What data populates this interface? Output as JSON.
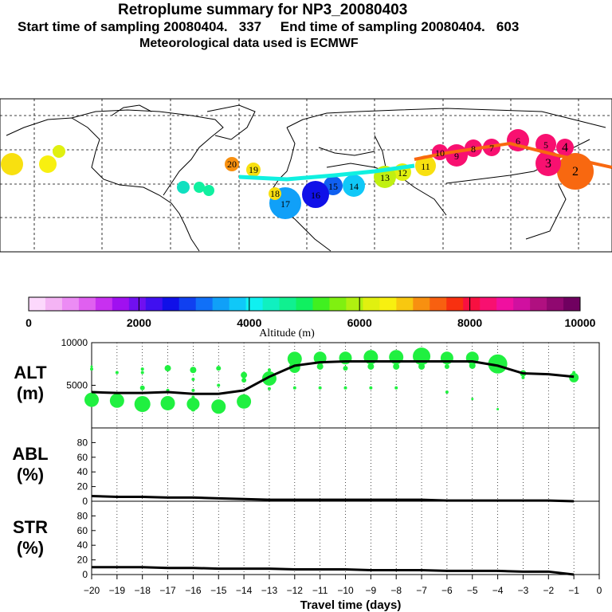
{
  "header": {
    "title": "Retroplume summary for NP3_20080403",
    "line2": "Start time of sampling 20080404.   337     End time of sampling 20080404.   603",
    "line3": "Meteorological data used is ECMWF"
  },
  "colorbar": {
    "ticks": [
      "0",
      "2000",
      "4000",
      "6000",
      "8000",
      "10000"
    ],
    "label": "Altitude (m)",
    "colors": [
      "#fcd8fc",
      "#f4b4f4",
      "#ec8cf4",
      "#e060f0",
      "#c830f0",
      "#a010f0",
      "#7010f0",
      "#4010f0",
      "#1010e8",
      "#1040f0",
      "#1070f8",
      "#10a0f8",
      "#10c8f8",
      "#10f0f0",
      "#10f0c0",
      "#10f090",
      "#10f060",
      "#40f020",
      "#80f010",
      "#b0f010",
      "#e0f010",
      "#f8f010",
      "#f8c810",
      "#f89010",
      "#f86010",
      "#f83010",
      "#f81040",
      "#f81070",
      "#f010a0",
      "#d010a0",
      "#b01080",
      "#900870",
      "#700060"
    ]
  },
  "map": {
    "plume_labels": [
      "2",
      "3",
      "4",
      "5",
      "6",
      "7",
      "8",
      "9",
      "10",
      "11",
      "12",
      "13",
      "14",
      "15",
      "16",
      "17",
      "18",
      "19",
      "20"
    ],
    "colors": {
      "ocean": "#ffffff",
      "coast": "#000000"
    }
  },
  "chart_data": [
    {
      "type": "scatter",
      "name": "ALT",
      "ylabel": "ALT\n(m)",
      "ylabel_lines": [
        "ALT",
        "(m)"
      ],
      "ylim": [
        0,
        10000
      ],
      "yticks": [
        "10000",
        "5000"
      ],
      "xlim": [
        -20,
        0
      ],
      "mean_line": {
        "x": [
          -20,
          -19,
          -18,
          -17,
          -16,
          -15,
          -14,
          -13,
          -12,
          -11,
          -10,
          -9,
          -8,
          -7,
          -6,
          -5,
          -4,
          -3,
          -2,
          -1
        ],
        "y": [
          4200,
          4100,
          4100,
          4200,
          4000,
          4000,
          4400,
          6000,
          7300,
          7700,
          7800,
          7800,
          7800,
          7800,
          7800,
          7800,
          7300,
          6400,
          6300,
          6000
        ]
      },
      "points": [
        {
          "x": -20,
          "y": 3300,
          "s": 9
        },
        {
          "x": -20,
          "y": 6900,
          "s": 2
        },
        {
          "x": -20,
          "y": 7200,
          "s": 1.5
        },
        {
          "x": -19,
          "y": 3200,
          "s": 9
        },
        {
          "x": -19,
          "y": 6500,
          "s": 2
        },
        {
          "x": -18,
          "y": 2800,
          "s": 10
        },
        {
          "x": -18,
          "y": 4700,
          "s": 3
        },
        {
          "x": -18,
          "y": 6500,
          "s": 2
        },
        {
          "x": -18,
          "y": 6900,
          "s": 2
        },
        {
          "x": -17,
          "y": 2900,
          "s": 9
        },
        {
          "x": -17,
          "y": 7000,
          "s": 4
        },
        {
          "x": -17,
          "y": 4400,
          "s": 2
        },
        {
          "x": -16,
          "y": 2800,
          "s": 8
        },
        {
          "x": -16,
          "y": 2200,
          "s": 3
        },
        {
          "x": -16,
          "y": 4400,
          "s": 2
        },
        {
          "x": -16,
          "y": 6800,
          "s": 4
        },
        {
          "x": -16,
          "y": 5700,
          "s": 2
        },
        {
          "x": -16,
          "y": 3600,
          "s": 2
        },
        {
          "x": -15,
          "y": 2500,
          "s": 9
        },
        {
          "x": -15,
          "y": 7000,
          "s": 3
        },
        {
          "x": -15,
          "y": 5000,
          "s": 2
        },
        {
          "x": -14,
          "y": 3100,
          "s": 9
        },
        {
          "x": -14,
          "y": 6200,
          "s": 4
        },
        {
          "x": -14,
          "y": 5600,
          "s": 3
        },
        {
          "x": -13,
          "y": 5800,
          "s": 9
        },
        {
          "x": -13,
          "y": 4600,
          "s": 2
        },
        {
          "x": -13,
          "y": 6800,
          "s": 2
        },
        {
          "x": -12,
          "y": 8100,
          "s": 9
        },
        {
          "x": -12,
          "y": 7100,
          "s": 7
        },
        {
          "x": -12,
          "y": 4700,
          "s": 2
        },
        {
          "x": -11,
          "y": 8200,
          "s": 8
        },
        {
          "x": -11,
          "y": 7200,
          "s": 4
        },
        {
          "x": -11,
          "y": 4700,
          "s": 2
        },
        {
          "x": -10,
          "y": 8200,
          "s": 8
        },
        {
          "x": -10,
          "y": 7000,
          "s": 3
        },
        {
          "x": -10,
          "y": 4700,
          "s": 2
        },
        {
          "x": -9,
          "y": 8300,
          "s": 9
        },
        {
          "x": -9,
          "y": 7200,
          "s": 4
        },
        {
          "x": -9,
          "y": 4700,
          "s": 2
        },
        {
          "x": -8,
          "y": 8300,
          "s": 9
        },
        {
          "x": -8,
          "y": 7200,
          "s": 4
        },
        {
          "x": -8,
          "y": 4700,
          "s": 2
        },
        {
          "x": -7,
          "y": 8400,
          "s": 11
        },
        {
          "x": -7,
          "y": 7200,
          "s": 4
        },
        {
          "x": -6,
          "y": 8200,
          "s": 8
        },
        {
          "x": -6,
          "y": 7200,
          "s": 3
        },
        {
          "x": -6,
          "y": 4200,
          "s": 2
        },
        {
          "x": -5,
          "y": 8200,
          "s": 8
        },
        {
          "x": -5,
          "y": 7300,
          "s": 4
        },
        {
          "x": -5,
          "y": 3400,
          "s": 1.5
        },
        {
          "x": -4,
          "y": 7500,
          "s": 12
        },
        {
          "x": -4,
          "y": 2200,
          "s": 1.5
        },
        {
          "x": -3,
          "y": 6400,
          "s": 4
        },
        {
          "x": -3,
          "y": 5900,
          "s": 2
        },
        {
          "x": -1,
          "y": 5900,
          "s": 6
        },
        {
          "x": -1,
          "y": 6500,
          "s": 2
        }
      ]
    },
    {
      "type": "line",
      "name": "ABL",
      "ylabel_lines": [
        "ABL",
        "(%)"
      ],
      "ylim": [
        0,
        100
      ],
      "yticks": [
        "80",
        "60",
        "40",
        "20",
        "0"
      ],
      "x": [
        -20,
        -19,
        -18,
        -17,
        -16,
        -15,
        -14,
        -13,
        -12,
        -11,
        -10,
        -9,
        -8,
        -7,
        -6,
        -5,
        -4,
        -3,
        -2,
        -1
      ],
      "y": [
        7,
        6,
        6,
        5,
        5,
        4,
        3,
        2,
        2,
        2,
        2,
        2,
        2,
        2,
        1,
        1,
        1,
        1,
        1,
        0
      ]
    },
    {
      "type": "line",
      "name": "STR",
      "ylabel_lines": [
        "STR",
        "(%)"
      ],
      "ylim": [
        0,
        100
      ],
      "yticks": [
        "80",
        "60",
        "40",
        "20",
        "0"
      ],
      "x": [
        -20,
        -19,
        -18,
        -17,
        -16,
        -15,
        -14,
        -13,
        -12,
        -11,
        -10,
        -9,
        -8,
        -7,
        -6,
        -5,
        -4,
        -3,
        -2,
        -1
      ],
      "y": [
        10,
        10,
        10,
        9,
        9,
        8,
        8,
        8,
        7,
        7,
        7,
        6,
        6,
        6,
        5,
        5,
        5,
        4,
        4,
        0
      ]
    }
  ],
  "xaxis": {
    "ticks": [
      "-20",
      "-19",
      "-18",
      "-17",
      "-16",
      "-15",
      "-14",
      "-13",
      "-12",
      "-11",
      "-10",
      "-9",
      "-8",
      "-7",
      "-6",
      "-5",
      "-4",
      "-3",
      "-2",
      "-1",
      "0"
    ],
    "label": "Travel time (days)"
  },
  "style": {
    "dot_color": "#20f040",
    "line_color": "#000000"
  }
}
